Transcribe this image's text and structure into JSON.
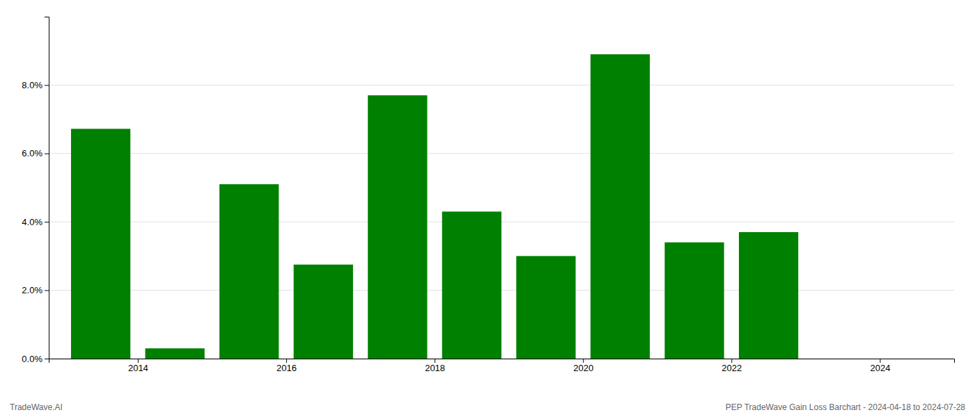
{
  "chart_data": {
    "type": "bar",
    "x": [
      2013,
      2014,
      2015,
      2016,
      2017,
      2018,
      2019,
      2020,
      2021,
      2022,
      2023
    ],
    "values": [
      0.0672,
      0.003,
      0.051,
      0.0275,
      0.077,
      0.043,
      0.03,
      0.089,
      0.034,
      0.037,
      0.0
    ],
    "color": "#008000",
    "xlim": [
      2012.3,
      2024.5
    ],
    "xticks": [
      {
        "value": 2013.5,
        "label": "2014"
      },
      {
        "value": 2015.5,
        "label": "2016"
      },
      {
        "value": 2017.5,
        "label": "2018"
      },
      {
        "value": 2019.5,
        "label": "2020"
      },
      {
        "value": 2021.5,
        "label": "2022"
      },
      {
        "value": 2023.5,
        "label": "2024"
      }
    ],
    "ylim": [
      0,
      0.1
    ],
    "yticks": [
      {
        "value": 0.0,
        "label": "0.0%"
      },
      {
        "value": 0.02,
        "label": "2.0%"
      },
      {
        "value": 0.04,
        "label": "4.0%"
      },
      {
        "value": 0.06,
        "label": "6.0%"
      },
      {
        "value": 0.08,
        "label": "8.0%"
      }
    ],
    "grid": true,
    "annotations": [
      "TradeWave.AI",
      "PEP TradeWave Gain Loss Barchart - 2024-04-18 to 2024-07-28"
    ]
  }
}
